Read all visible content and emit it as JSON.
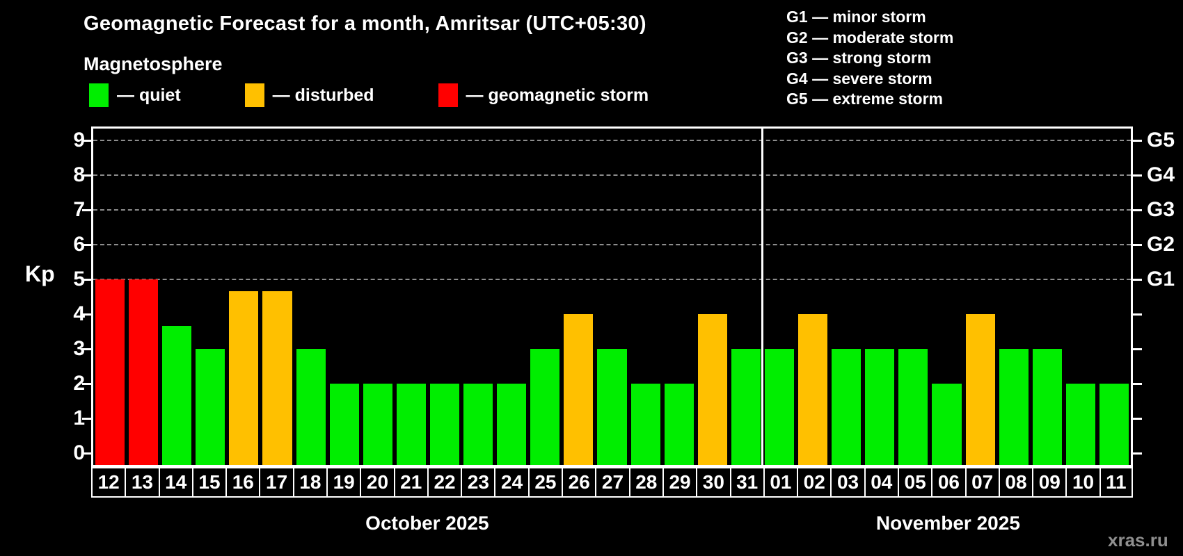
{
  "title": "Geomagnetic Forecast for a month, Amritsar (UTC+05:30)",
  "subtitle": "Magnetosphere",
  "legend": {
    "items": [
      {
        "key": "quiet",
        "label": "— quiet",
        "color": "#00ee00"
      },
      {
        "key": "disturbed",
        "label": "— disturbed",
        "color": "#ffc000"
      },
      {
        "key": "storm",
        "label": "— geomagnetic storm",
        "color": "#ff0000"
      }
    ]
  },
  "g_legend": [
    "G1 — minor storm",
    "G2 — moderate storm",
    "G3 — strong storm",
    "G4 — severe storm",
    "G5 — extreme storm"
  ],
  "watermark": "xras.ru",
  "chart_data": {
    "type": "bar",
    "title": "Geomagnetic Forecast for a month, Amritsar (UTC+05:30)",
    "ylabel": "Kp",
    "ylim": [
      0,
      9
    ],
    "yticks": [
      0,
      1,
      2,
      3,
      4,
      5,
      6,
      7,
      8,
      9
    ],
    "gridlines_at": [
      5,
      6,
      7,
      8,
      9
    ],
    "grid": "dashed horizontal at storm levels only",
    "legend_position": "top",
    "right_axis_labels": [
      {
        "level": 5,
        "label": "G1"
      },
      {
        "level": 6,
        "label": "G2"
      },
      {
        "level": 7,
        "label": "G3"
      },
      {
        "level": 8,
        "label": "G4"
      },
      {
        "level": 9,
        "label": "G5"
      }
    ],
    "months": [
      {
        "label": "October 2025",
        "days": 20
      },
      {
        "label": "November 2025",
        "days": 11
      }
    ],
    "categories": [
      "12",
      "13",
      "14",
      "15",
      "16",
      "17",
      "18",
      "19",
      "20",
      "21",
      "22",
      "23",
      "24",
      "25",
      "26",
      "27",
      "28",
      "29",
      "30",
      "31",
      "01",
      "02",
      "03",
      "04",
      "05",
      "06",
      "07",
      "08",
      "09",
      "10",
      "11"
    ],
    "values": [
      5,
      5,
      3.67,
      3,
      4.67,
      4.67,
      3,
      2,
      2,
      2,
      2,
      2,
      2,
      3,
      4,
      3,
      2,
      2,
      4,
      3,
      3,
      4,
      3,
      3,
      3,
      2,
      4,
      3,
      3,
      2,
      2
    ],
    "statuses": [
      "storm",
      "storm",
      "quiet",
      "quiet",
      "disturbed",
      "disturbed",
      "quiet",
      "quiet",
      "quiet",
      "quiet",
      "quiet",
      "quiet",
      "quiet",
      "quiet",
      "disturbed",
      "quiet",
      "quiet",
      "quiet",
      "disturbed",
      "quiet",
      "quiet",
      "disturbed",
      "quiet",
      "quiet",
      "quiet",
      "quiet",
      "disturbed",
      "quiet",
      "quiet",
      "quiet",
      "quiet"
    ],
    "colors": {
      "quiet": "#00ee00",
      "disturbed": "#ffc000",
      "storm": "#ff0000"
    }
  }
}
